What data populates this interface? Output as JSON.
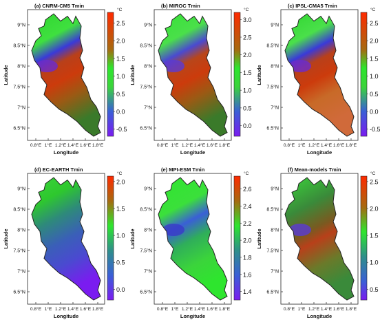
{
  "figure": {
    "panels_grid": "2x3",
    "land_colors_note": "diverging purple-blue-green-red colorbar"
  },
  "colors": {
    "scale": [
      "#7a1cf0",
      "#3a5fd6",
      "#2f8f8a",
      "#3bd43b",
      "#2ee52e",
      "#8a8a1a",
      "#c83a0a",
      "#e8261c"
    ],
    "outline": "#222222"
  },
  "axis_labels": {
    "x": "Longitude",
    "y": "Latitude",
    "unit": "°C"
  },
  "lon_ticks": [
    "0.8°E",
    "1°E",
    "1.2°E",
    "1.4°E",
    "1.6°E",
    "1.8°E"
  ],
  "lat_ticks": [
    "9°N",
    "8.5°N",
    "8°N",
    "7.5°N",
    "7°N",
    "6.5°N"
  ],
  "chart_data": [
    {
      "type": "heatmap",
      "title": "(a) CNRM-CM5 Tmin",
      "xlabel": "Longitude",
      "ylabel": "Latitude",
      "colorbar_ticks": [
        2.5,
        2.0,
        1.5,
        1.0,
        0.5,
        0.0,
        -0.5
      ],
      "range": [
        -0.7,
        2.8
      ]
    },
    {
      "type": "heatmap",
      "title": "(b) MIROC Tmin",
      "xlabel": "Longitude",
      "ylabel": "Latitude",
      "colorbar_ticks": [
        3.0,
        2.5,
        2.0,
        1.5,
        1.0,
        0.5,
        0.0
      ],
      "range": [
        -0.3,
        3.2
      ]
    },
    {
      "type": "heatmap",
      "title": "(c) IPSL-CMA5 Tmin",
      "xlabel": "Longitude",
      "ylabel": "Latitude",
      "colorbar_ticks": [
        2.5,
        2.0,
        1.5,
        1.0,
        0.5,
        0.0,
        -0.5
      ],
      "range": [
        -0.7,
        2.8
      ]
    },
    {
      "type": "heatmap",
      "title": "(d) EC-EARTH Tmin",
      "xlabel": "Longitude",
      "ylabel": "Latitude",
      "colorbar_ticks": [
        2.0,
        1.5,
        1.0,
        0.5,
        0.0
      ],
      "range": [
        -0.2,
        2.1
      ]
    },
    {
      "type": "heatmap",
      "title": "(e) MPI-ESM Tmin",
      "xlabel": "Longitude",
      "ylabel": "Latitude",
      "colorbar_ticks": [
        2.6,
        2.4,
        2.2,
        2.0,
        1.8,
        1.6,
        1.4
      ],
      "range": [
        1.3,
        2.75
      ]
    },
    {
      "type": "heatmap",
      "title": "(f) Mean-models Tmin",
      "xlabel": "Longitude",
      "ylabel": "Latitude",
      "colorbar_ticks": [
        2.5,
        2.0,
        1.5,
        1.0,
        0.5
      ],
      "range": [
        0.3,
        2.6
      ]
    }
  ]
}
